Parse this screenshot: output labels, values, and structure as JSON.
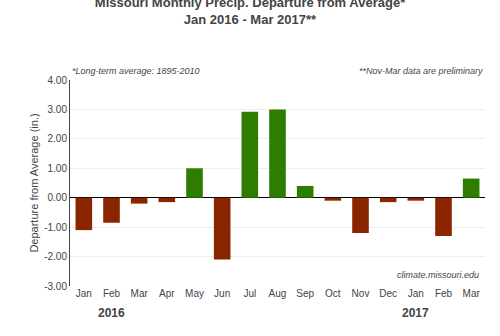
{
  "chart_data": {
    "type": "bar",
    "title": "Missouri Monthly Precip. Departure from Average*",
    "subtitle": "Jan 2016 - Mar 2017**",
    "ylabel": "Departure from Average (in.)",
    "annotations": [
      "*Long-term average: 1895-2010",
      "**Nov-Mar data are preliminary",
      "climate.missouri.edu"
    ],
    "year_labels": [
      {
        "text": "2016",
        "x": 1
      },
      {
        "text": "2017",
        "x": 12
      }
    ],
    "categories": [
      "Jan",
      "Feb",
      "Mar",
      "Apr",
      "May",
      "Jun",
      "Jul",
      "Aug",
      "Sep",
      "Oct",
      "Nov",
      "Dec",
      "Jan",
      "Feb",
      "Mar"
    ],
    "values": [
      -1.1,
      -0.85,
      -0.2,
      -0.15,
      1.0,
      -2.1,
      2.92,
      3.0,
      0.4,
      -0.1,
      -1.2,
      -0.15,
      -0.1,
      -1.3,
      0.65
    ],
    "colors": [
      "#8B2500",
      "#8B2500",
      "#8B2500",
      "#8B2500",
      "#2E7D00",
      "#8B2500",
      "#2E7D00",
      "#2E7D00",
      "#2E7D00",
      "#8B2500",
      "#8B2500",
      "#8B2500",
      "#8B2500",
      "#8B2500",
      "#2E7D00"
    ],
    "ylim": [
      -3.0,
      4.0
    ],
    "yticks": [
      {
        "value": -3.0,
        "label": "-3.00"
      },
      {
        "value": -2.0,
        "label": "-2.00"
      },
      {
        "value": -1.0,
        "label": "-1.00"
      },
      {
        "value": 0.0,
        "label": "0.00"
      },
      {
        "value": 1.0,
        "label": "1.00"
      },
      {
        "value": 2.0,
        "label": "2.00"
      },
      {
        "value": 3.0,
        "label": "3.00"
      },
      {
        "value": 4.0,
        "label": "4.00"
      }
    ],
    "grid": true
  }
}
